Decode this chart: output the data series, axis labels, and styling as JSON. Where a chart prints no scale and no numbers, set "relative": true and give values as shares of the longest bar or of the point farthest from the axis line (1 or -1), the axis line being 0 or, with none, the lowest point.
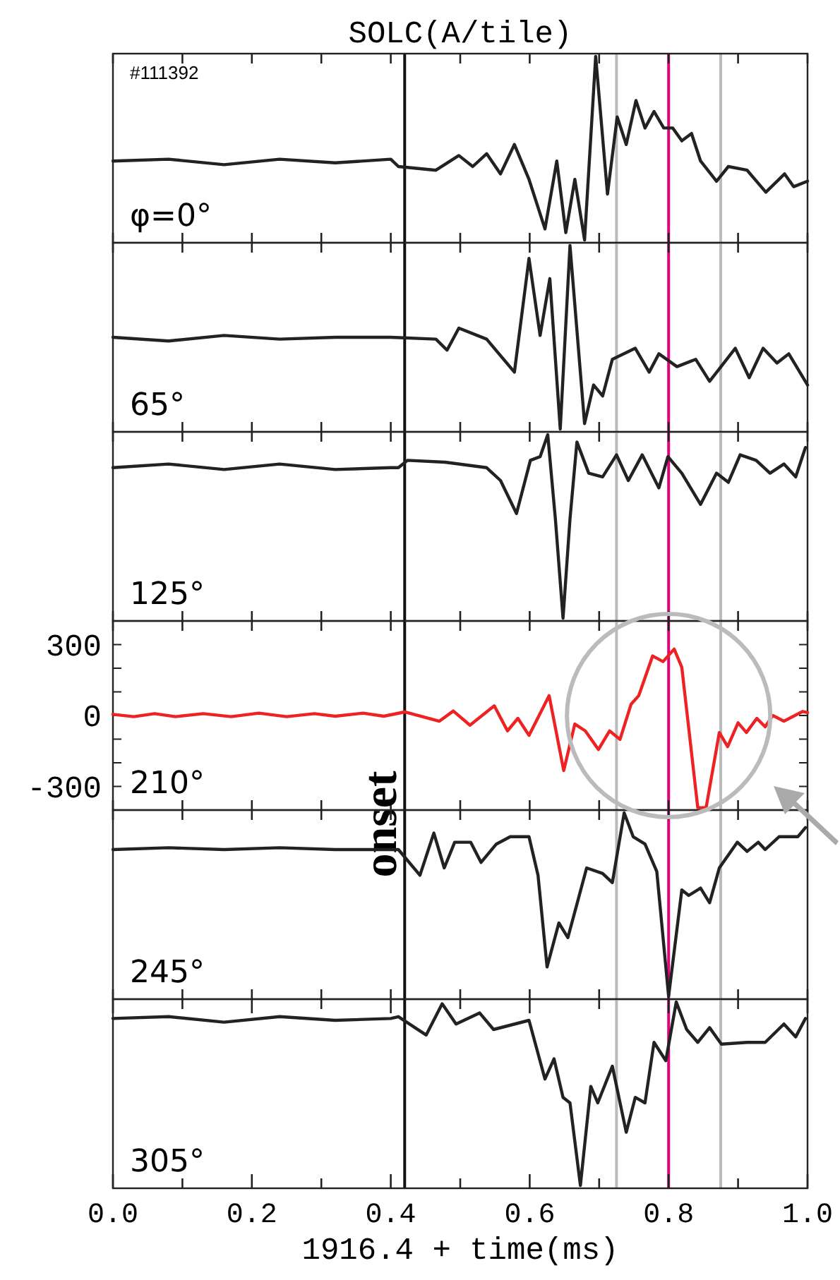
{
  "chart_data": [
    {
      "type": "line",
      "title": "SOLC(A/tile)",
      "annotations": [
        "#111392",
        "φ=0°"
      ],
      "relative": true,
      "tick_labels": false,
      "xlim": [
        0,
        1
      ],
      "xticks": [
        {
          "value": 0,
          "label": null
        },
        {
          "value": 0.1,
          "label": null
        },
        {
          "value": 0.2,
          "label": null
        },
        {
          "value": 0.3,
          "label": null
        },
        {
          "value": 0.4,
          "label": null
        },
        {
          "value": 0.5,
          "label": null
        },
        {
          "value": 0.6,
          "label": null
        },
        {
          "value": 0.7,
          "label": null
        },
        {
          "value": 0.8,
          "label": null
        },
        {
          "value": 0.9,
          "label": null
        },
        {
          "value": 1,
          "label": null
        }
      ],
      "ref_lines": [
        {
          "axis": "x",
          "value": 0.42,
          "color": "#111111"
        },
        {
          "axis": "x",
          "value": 0.725,
          "color": "#bbbbbb"
        },
        {
          "axis": "x",
          "value": 0.875,
          "color": "#bbbbbb"
        },
        {
          "axis": "x",
          "value": 0.8,
          "color": "#e6007e"
        }
      ],
      "series": [
        {
          "color": "#222222",
          "x": [
            0,
            0.08,
            0.16,
            0.24,
            0.32,
            0.4,
            0.411,
            0.465,
            0.498,
            0.518,
            0.538,
            0.558,
            0.578,
            0.599,
            0.622,
            0.639,
            0.652,
            0.665,
            0.679,
            0.695,
            0.712,
            0.726,
            0.739,
            0.753,
            0.766,
            0.779,
            0.793,
            0.806,
            0.819,
            0.833,
            0.846,
            0.869,
            0.886,
            0.913,
            0.94,
            0.967,
            0.98,
            1.0
          ],
          "values": [
            0.43,
            0.44,
            0.41,
            0.44,
            0.42,
            0.44,
            0.4,
            0.38,
            0.46,
            0.4,
            0.47,
            0.36,
            0.52,
            0.33,
            0.06,
            0.43,
            0.04,
            0.33,
            0,
            1,
            0.25,
            0.67,
            0.52,
            0.76,
            0.61,
            0.7,
            0.61,
            0.61,
            0.54,
            0.58,
            0.43,
            0.32,
            0.4,
            0.38,
            0.26,
            0.36,
            0.29,
            0.32
          ]
        }
      ]
    },
    {
      "type": "line",
      "annotations": [
        "65°"
      ],
      "relative": true,
      "tick_labels": false,
      "xlim": [
        0,
        1
      ],
      "xticks": [
        {
          "value": 0,
          "label": null
        },
        {
          "value": 0.1,
          "label": null
        },
        {
          "value": 0.2,
          "label": null
        },
        {
          "value": 0.3,
          "label": null
        },
        {
          "value": 0.4,
          "label": null
        },
        {
          "value": 0.5,
          "label": null
        },
        {
          "value": 0.6,
          "label": null
        },
        {
          "value": 0.7,
          "label": null
        },
        {
          "value": 0.8,
          "label": null
        },
        {
          "value": 0.9,
          "label": null
        },
        {
          "value": 1,
          "label": null
        }
      ],
      "ref_lines": [
        {
          "axis": "x",
          "value": 0.42,
          "color": "#111111"
        },
        {
          "axis": "x",
          "value": 0.725,
          "color": "#bbbbbb"
        },
        {
          "axis": "x",
          "value": 0.875,
          "color": "#bbbbbb"
        },
        {
          "axis": "x",
          "value": 0.8,
          "color": "#e6007e"
        }
      ],
      "series": [
        {
          "color": "#222222",
          "x": [
            0,
            0.08,
            0.16,
            0.24,
            0.32,
            0.4,
            0.465,
            0.481,
            0.498,
            0.538,
            0.578,
            0.599,
            0.615,
            0.629,
            0.644,
            0.658,
            0.679,
            0.692,
            0.705,
            0.719,
            0.752,
            0.772,
            0.786,
            0.812,
            0.839,
            0.859,
            0.896,
            0.916,
            0.936,
            0.956,
            0.973,
            1.0
          ],
          "values": [
            0.5,
            0.48,
            0.51,
            0.49,
            0.5,
            0.5,
            0.49,
            0.43,
            0.55,
            0.49,
            0.31,
            0.93,
            0.51,
            0.82,
            0,
            1,
            0.03,
            0.24,
            0.18,
            0.38,
            0.44,
            0.31,
            0.41,
            0.34,
            0.38,
            0.26,
            0.44,
            0.28,
            0.44,
            0.36,
            0.41,
            0.24
          ]
        }
      ]
    },
    {
      "type": "line",
      "annotations": [
        "125°"
      ],
      "relative": true,
      "tick_labels": false,
      "xlim": [
        0,
        1
      ],
      "xticks": [
        {
          "value": 0,
          "label": null
        },
        {
          "value": 0.1,
          "label": null
        },
        {
          "value": 0.2,
          "label": null
        },
        {
          "value": 0.3,
          "label": null
        },
        {
          "value": 0.4,
          "label": null
        },
        {
          "value": 0.5,
          "label": null
        },
        {
          "value": 0.6,
          "label": null
        },
        {
          "value": 0.7,
          "label": null
        },
        {
          "value": 0.8,
          "label": null
        },
        {
          "value": 0.9,
          "label": null
        },
        {
          "value": 1,
          "label": null
        }
      ],
      "ref_lines": [
        {
          "axis": "x",
          "value": 0.42,
          "color": "#111111"
        },
        {
          "axis": "x",
          "value": 0.725,
          "color": "#bbbbbb"
        },
        {
          "axis": "x",
          "value": 0.875,
          "color": "#bbbbbb"
        },
        {
          "axis": "x",
          "value": 0.8,
          "color": "#e6007e"
        }
      ],
      "series": [
        {
          "color": "#222222",
          "x": [
            0,
            0.08,
            0.16,
            0.24,
            0.32,
            0.4,
            0.411,
            0.424,
            0.478,
            0.538,
            0.558,
            0.581,
            0.601,
            0.615,
            0.626,
            0.637,
            0.648,
            0.658,
            0.668,
            0.685,
            0.705,
            0.725,
            0.742,
            0.762,
            0.786,
            0.799,
            0.819,
            0.846,
            0.869,
            0.886,
            0.903,
            0.926,
            0.946,
            0.966,
            0.983,
            0.997
          ],
          "values": [
            0.82,
            0.84,
            0.81,
            0.84,
            0.81,
            0.82,
            0.82,
            0.86,
            0.85,
            0.82,
            0.75,
            0.57,
            0.86,
            0.88,
            1,
            0.54,
            0,
            0.54,
            0.96,
            0.79,
            0.77,
            0.89,
            0.75,
            0.89,
            0.71,
            0.88,
            0.79,
            0.62,
            0.79,
            0.74,
            0.89,
            0.86,
            0.79,
            0.84,
            0.77,
            0.93
          ]
        }
      ]
    },
    {
      "type": "line",
      "annotations": [
        "210°"
      ],
      "tick_labels": "y",
      "xlim": [
        0,
        1
      ],
      "ylim": [
        -400,
        400
      ],
      "xticks": [
        {
          "value": 0,
          "label": null
        },
        {
          "value": 0.1,
          "label": null
        },
        {
          "value": 0.2,
          "label": null
        },
        {
          "value": 0.3,
          "label": null
        },
        {
          "value": 0.4,
          "label": null
        },
        {
          "value": 0.5,
          "label": null
        },
        {
          "value": 0.6,
          "label": null
        },
        {
          "value": 0.7,
          "label": null
        },
        {
          "value": 0.8,
          "label": null
        },
        {
          "value": 0.9,
          "label": null
        },
        {
          "value": 1,
          "label": null
        }
      ],
      "yticks": [
        {
          "value": -400,
          "label": null
        },
        -300,
        {
          "value": -200,
          "label": null
        },
        {
          "value": -100,
          "label": null
        },
        0,
        {
          "value": 100,
          "label": null
        },
        {
          "value": 200,
          "label": null
        },
        300,
        {
          "value": 400,
          "label": null
        }
      ],
      "ref_lines": [
        {
          "axis": "x",
          "value": 0.42,
          "color": "#111111"
        },
        {
          "axis": "x",
          "value": 0.725,
          "color": "#bbbbbb"
        },
        {
          "axis": "x",
          "value": 0.875,
          "color": "#bbbbbb"
        },
        {
          "axis": "x",
          "value": 0.8,
          "color": "#e6007e"
        }
      ],
      "series": [
        {
          "color": "#ee2222",
          "x": [
            0,
            0.03,
            0.06,
            0.09,
            0.13,
            0.17,
            0.21,
            0.25,
            0.29,
            0.32,
            0.36,
            0.39,
            0.42,
            0.47,
            0.49,
            0.514,
            0.549,
            0.568,
            0.583,
            0.599,
            0.628,
            0.649,
            0.665,
            0.68,
            0.699,
            0.715,
            0.73,
            0.746,
            0.757,
            0.777,
            0.792,
            0.808,
            0.819,
            0.842,
            0.854,
            0.873,
            0.885,
            0.9,
            0.912,
            0.927,
            0.939,
            0.95,
            0.966,
            0.993,
            1.0
          ],
          "values": [
            5,
            -5,
            8,
            -5,
            8,
            -5,
            10,
            -5,
            8,
            -3,
            10,
            -3,
            15,
            -24,
            19,
            -41,
            41,
            -65,
            -12,
            -84,
            84,
            -233,
            -36,
            -65,
            -144,
            -65,
            -101,
            48,
            84,
            252,
            228,
            281,
            204,
            -390,
            -390,
            -72,
            -132,
            -31,
            -72,
            -12,
            -48,
            0,
            -24,
            17,
            12
          ]
        }
      ]
    },
    {
      "type": "line",
      "annotations": [
        "245°"
      ],
      "relative": true,
      "tick_labels": false,
      "xlim": [
        0,
        1
      ],
      "xticks": [
        {
          "value": 0,
          "label": null
        },
        {
          "value": 0.1,
          "label": null
        },
        {
          "value": 0.2,
          "label": null
        },
        {
          "value": 0.3,
          "label": null
        },
        {
          "value": 0.4,
          "label": null
        },
        {
          "value": 0.5,
          "label": null
        },
        {
          "value": 0.6,
          "label": null
        },
        {
          "value": 0.7,
          "label": null
        },
        {
          "value": 0.8,
          "label": null
        },
        {
          "value": 0.9,
          "label": null
        },
        {
          "value": 1,
          "label": null
        }
      ],
      "ref_lines": [
        {
          "axis": "x",
          "value": 0.42,
          "color": "#111111",
          "label": "onset"
        },
        {
          "axis": "x",
          "value": 0.725,
          "color": "#bbbbbb"
        },
        {
          "axis": "x",
          "value": 0.875,
          "color": "#bbbbbb"
        },
        {
          "axis": "x",
          "value": 0.8,
          "color": "#e6007e"
        }
      ],
      "series": [
        {
          "color": "#222222",
          "x": [
            0,
            0.08,
            0.16,
            0.24,
            0.32,
            0.4,
            0.411,
            0.442,
            0.462,
            0.477,
            0.492,
            0.515,
            0.53,
            0.552,
            0.572,
            0.599,
            0.612,
            0.625,
            0.642,
            0.655,
            0.682,
            0.705,
            0.719,
            0.736,
            0.749,
            0.766,
            0.783,
            0.8,
            0.819,
            0.829,
            0.846,
            0.859,
            0.873,
            0.899,
            0.913,
            0.929,
            0.939,
            0.959,
            0.986,
            0.997
          ],
          "values": [
            0.8,
            0.81,
            0.8,
            0.81,
            0.8,
            0.8,
            0.8,
            0.66,
            0.89,
            0.7,
            0.84,
            0.84,
            0.73,
            0.83,
            0.87,
            0.87,
            0.66,
            0.16,
            0.4,
            0.32,
            0.7,
            0.67,
            0.62,
            1,
            0.87,
            0.83,
            0.68,
            0,
            0.58,
            0.55,
            0.59,
            0.51,
            0.7,
            0.84,
            0.79,
            0.84,
            0.8,
            0.87,
            0.87,
            0.92
          ]
        }
      ]
    },
    {
      "type": "line",
      "annotations": [
        "305°"
      ],
      "xlabel": "1916.4 + time(ms)",
      "relative": true,
      "tick_labels": "x",
      "xlim": [
        0,
        1
      ],
      "xticks": [
        {
          "value": 0,
          "label": "0.0"
        },
        {
          "value": 0.1,
          "label": null
        },
        {
          "value": 0.2,
          "label": "0.2"
        },
        {
          "value": 0.3,
          "label": null
        },
        {
          "value": 0.4,
          "label": "0.4"
        },
        {
          "value": 0.5,
          "label": null
        },
        {
          "value": 0.6,
          "label": "0.6"
        },
        {
          "value": 0.7,
          "label": null
        },
        {
          "value": 0.8,
          "label": "0.8"
        },
        {
          "value": 0.9,
          "label": null
        },
        {
          "value": 1,
          "label": "1.0"
        }
      ],
      "ref_lines": [
        {
          "axis": "x",
          "value": 0.42,
          "color": "#111111"
        },
        {
          "axis": "x",
          "value": 0.725,
          "color": "#bbbbbb"
        },
        {
          "axis": "x",
          "value": 0.875,
          "color": "#bbbbbb"
        },
        {
          "axis": "x",
          "value": 0.8,
          "color": "#e6007e"
        }
      ],
      "series": [
        {
          "color": "#222222",
          "x": [
            0,
            0.08,
            0.16,
            0.24,
            0.32,
            0.4,
            0.411,
            0.451,
            0.474,
            0.494,
            0.528,
            0.548,
            0.599,
            0.622,
            0.635,
            0.648,
            0.658,
            0.673,
            0.688,
            0.698,
            0.719,
            0.739,
            0.752,
            0.766,
            0.779,
            0.796,
            0.811,
            0.826,
            0.842,
            0.859,
            0.876,
            0.913,
            0.939,
            0.966,
            0.983,
            0.997
          ],
          "values": [
            0.91,
            0.92,
            0.89,
            0.92,
            0.9,
            0.91,
            0.92,
            0.82,
            0.99,
            0.88,
            0.94,
            0.85,
            0.9,
            0.58,
            0.69,
            0.48,
            0.45,
            0,
            0.54,
            0.45,
            0.65,
            0.29,
            0.48,
            0.45,
            0.78,
            0.68,
            1,
            0.85,
            0.78,
            0.86,
            0.77,
            0.78,
            0.78,
            0.88,
            0.81,
            0.91
          ]
        }
      ]
    }
  ]
}
